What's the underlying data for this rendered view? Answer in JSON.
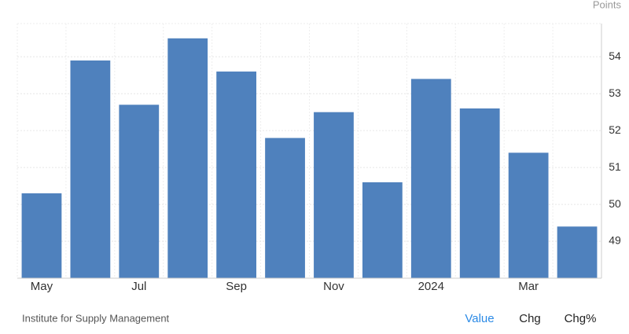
{
  "chart_data": {
    "type": "bar",
    "unit_label": "Points",
    "categories": [
      "May",
      null,
      "Jul",
      null,
      "Sep",
      null,
      "Nov",
      null,
      "2024",
      null,
      "Mar",
      null
    ],
    "values": [
      50.3,
      53.9,
      52.7,
      54.5,
      53.6,
      51.8,
      52.5,
      50.6,
      53.4,
      52.6,
      51.4,
      49.4
    ],
    "color": "#4f81bd",
    "ylim": [
      48,
      54.9
    ],
    "yticks": [
      49,
      50,
      51,
      52,
      53,
      54
    ],
    "grid": true
  },
  "footer": {
    "source": "Institute for Supply Management",
    "tabs": [
      "Value",
      "Chg",
      "Chg%"
    ]
  }
}
